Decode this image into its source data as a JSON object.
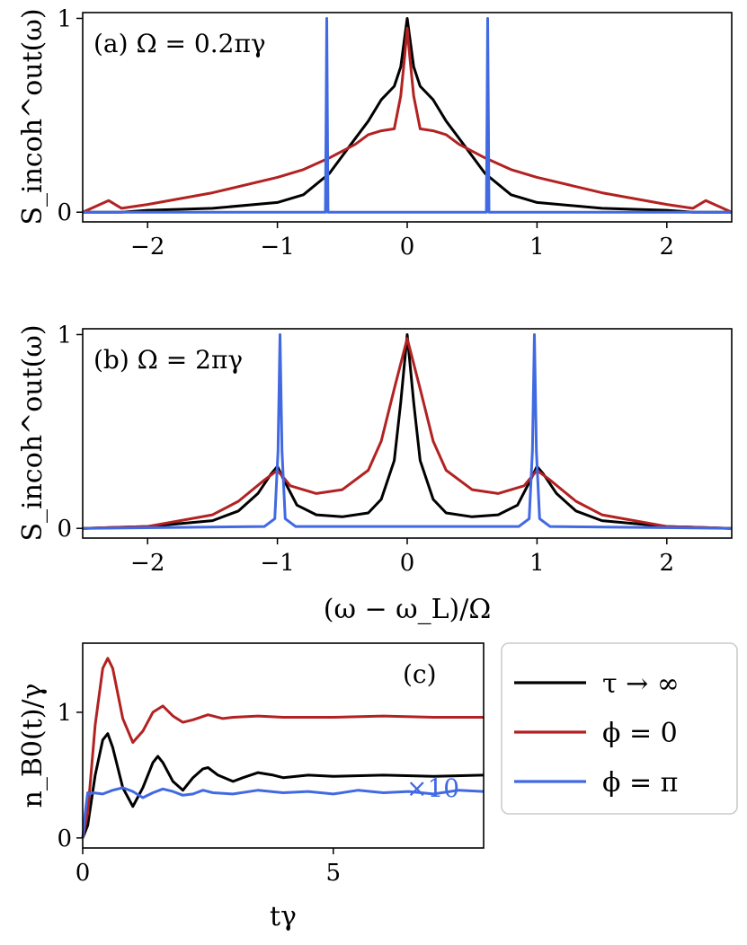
{
  "colors": {
    "tau_inf": "#000000",
    "phi0": "#b22222",
    "phipi": "#4169e1"
  },
  "legend": {
    "entries": [
      {
        "key": "tau_inf",
        "label": "τ → ∞"
      },
      {
        "key": "phi0",
        "label": "ϕ = 0"
      },
      {
        "key": "phipi",
        "label": "ϕ = π"
      }
    ]
  },
  "chart_data": [
    {
      "id": "a",
      "type": "line",
      "annotation": "(a) Ω = 0.2πγ",
      "ylabel": "S_incoh^out(ω)",
      "xlabel": "",
      "xlim": [
        -2.5,
        2.5
      ],
      "ylim": [
        -0.05,
        1.03
      ],
      "xticks": [
        -2,
        -1,
        0,
        1,
        2
      ],
      "xtick_labels": [
        "−2",
        "−1",
        "0",
        "1",
        "2"
      ],
      "yticks": [
        0,
        1
      ],
      "ytick_labels": [
        "0",
        "1"
      ],
      "series": [
        {
          "key": "tau_inf",
          "x": [
            -2.5,
            -2.2,
            -2.0,
            -1.5,
            -1.0,
            -0.8,
            -0.6,
            -0.4,
            -0.3,
            -0.2,
            -0.1,
            -0.05,
            0,
            0.05,
            0.1,
            0.2,
            0.3,
            0.4,
            0.6,
            0.8,
            1.0,
            1.5,
            2.0,
            2.2,
            2.5
          ],
          "y": [
            0.0,
            0.0,
            0.01,
            0.02,
            0.05,
            0.09,
            0.2,
            0.38,
            0.47,
            0.58,
            0.65,
            0.75,
            1.0,
            0.75,
            0.65,
            0.58,
            0.47,
            0.38,
            0.2,
            0.09,
            0.05,
            0.02,
            0.01,
            0.0,
            0.0
          ]
        },
        {
          "key": "phi0",
          "x": [
            -2.5,
            -2.3,
            -2.2,
            -2.0,
            -1.5,
            -1.0,
            -0.8,
            -0.6,
            -0.4,
            -0.3,
            -0.2,
            -0.1,
            -0.05,
            -0.02,
            0,
            0.02,
            0.05,
            0.1,
            0.2,
            0.3,
            0.4,
            0.6,
            0.8,
            1.0,
            1.5,
            2.0,
            2.2,
            2.3,
            2.5
          ],
          "y": [
            0.0,
            0.06,
            0.02,
            0.04,
            0.1,
            0.18,
            0.22,
            0.28,
            0.35,
            0.4,
            0.42,
            0.43,
            0.6,
            0.8,
            0.95,
            0.8,
            0.6,
            0.43,
            0.42,
            0.4,
            0.35,
            0.28,
            0.22,
            0.18,
            0.1,
            0.04,
            0.02,
            0.06,
            0.0
          ]
        },
        {
          "key": "phipi",
          "x": [
            -2.5,
            -0.63,
            -0.625,
            -0.62,
            -0.615,
            -0.61,
            0.61,
            0.615,
            0.62,
            0.625,
            0.63,
            2.5
          ],
          "y": [
            0.0,
            0.0,
            0.5,
            1.0,
            0.5,
            0.0,
            0.0,
            0.5,
            1.0,
            0.5,
            0.0,
            0.0
          ]
        }
      ]
    },
    {
      "id": "b",
      "type": "line",
      "annotation": "(b) Ω = 2πγ",
      "ylabel": "S_incoh^out(ω)",
      "xlabel": "(ω − ω_L)/Ω",
      "xlim": [
        -2.5,
        2.5
      ],
      "ylim": [
        -0.05,
        1.03
      ],
      "xticks": [
        -2,
        -1,
        0,
        1,
        2
      ],
      "xtick_labels": [
        "−2",
        "−1",
        "0",
        "1",
        "2"
      ],
      "yticks": [
        0,
        1
      ],
      "ytick_labels": [
        "0",
        "1"
      ],
      "series": [
        {
          "key": "tau_inf",
          "x": [
            -2.5,
            -2.0,
            -1.5,
            -1.3,
            -1.15,
            -1.05,
            -1.0,
            -0.95,
            -0.85,
            -0.7,
            -0.5,
            -0.3,
            -0.2,
            -0.1,
            -0.05,
            0,
            0.05,
            0.1,
            0.2,
            0.3,
            0.5,
            0.7,
            0.85,
            0.95,
            1.0,
            1.05,
            1.15,
            1.3,
            1.5,
            2.0,
            2.5
          ],
          "y": [
            0.0,
            0.01,
            0.04,
            0.09,
            0.18,
            0.28,
            0.32,
            0.25,
            0.12,
            0.07,
            0.06,
            0.08,
            0.15,
            0.35,
            0.65,
            1.0,
            0.65,
            0.35,
            0.15,
            0.08,
            0.06,
            0.07,
            0.12,
            0.25,
            0.32,
            0.28,
            0.18,
            0.09,
            0.04,
            0.01,
            0.0
          ]
        },
        {
          "key": "phi0",
          "x": [
            -2.5,
            -2.0,
            -1.5,
            -1.3,
            -1.1,
            -1.0,
            -0.9,
            -0.7,
            -0.5,
            -0.3,
            -0.2,
            -0.1,
            0,
            0.1,
            0.2,
            0.3,
            0.5,
            0.7,
            0.9,
            1.0,
            1.1,
            1.3,
            1.5,
            2.0,
            2.5
          ],
          "y": [
            0.0,
            0.01,
            0.07,
            0.14,
            0.25,
            0.3,
            0.22,
            0.18,
            0.2,
            0.3,
            0.45,
            0.72,
            0.98,
            0.72,
            0.45,
            0.3,
            0.2,
            0.18,
            0.22,
            0.3,
            0.25,
            0.14,
            0.07,
            0.01,
            0.0
          ]
        },
        {
          "key": "phipi",
          "x": [
            -2.5,
            -1.1,
            -1.02,
            -0.995,
            -0.98,
            -0.965,
            -0.94,
            -0.86,
            0.86,
            0.94,
            0.965,
            0.98,
            0.995,
            1.02,
            1.1,
            2.5
          ],
          "y": [
            0.0,
            0.01,
            0.05,
            0.4,
            1.0,
            0.4,
            0.05,
            0.01,
            0.01,
            0.05,
            0.4,
            1.0,
            0.4,
            0.05,
            0.01,
            0.0
          ]
        }
      ]
    },
    {
      "id": "c",
      "type": "line",
      "annotation": "(c)",
      "ylabel": "n_B0(t)/γ",
      "xlabel": "tγ",
      "xlim": [
        0,
        8
      ],
      "ylim": [
        -0.08,
        1.55
      ],
      "xticks": [
        0,
        5
      ],
      "xtick_labels": [
        "0",
        "5"
      ],
      "yticks": [
        0,
        1
      ],
      "ytick_labels": [
        "0",
        "1"
      ],
      "note": "×10",
      "series": [
        {
          "key": "tau_inf",
          "x": [
            0,
            0.1,
            0.25,
            0.4,
            0.5,
            0.6,
            0.8,
            1.0,
            1.2,
            1.4,
            1.5,
            1.6,
            1.8,
            2.0,
            2.2,
            2.4,
            2.5,
            2.7,
            3.0,
            3.2,
            3.5,
            3.8,
            4.0,
            4.5,
            5.0,
            6.0,
            7.0,
            8.0
          ],
          "y": [
            0,
            0.1,
            0.5,
            0.78,
            0.83,
            0.72,
            0.4,
            0.25,
            0.4,
            0.6,
            0.65,
            0.6,
            0.45,
            0.38,
            0.48,
            0.55,
            0.56,
            0.5,
            0.45,
            0.48,
            0.52,
            0.5,
            0.48,
            0.5,
            0.49,
            0.5,
            0.49,
            0.5
          ]
        },
        {
          "key": "phi0",
          "x": [
            0,
            0.1,
            0.25,
            0.4,
            0.5,
            0.6,
            0.8,
            1.0,
            1.2,
            1.4,
            1.6,
            1.8,
            2.0,
            2.2,
            2.5,
            2.8,
            3.0,
            3.5,
            4.0,
            5.0,
            6.0,
            7.0,
            8.0
          ],
          "y": [
            0,
            0.2,
            0.9,
            1.35,
            1.43,
            1.35,
            0.95,
            0.76,
            0.85,
            1.0,
            1.05,
            0.97,
            0.92,
            0.94,
            0.98,
            0.95,
            0.96,
            0.97,
            0.96,
            0.96,
            0.97,
            0.96,
            0.96
          ]
        },
        {
          "key": "phipi",
          "x": [
            0,
            0.05,
            0.1,
            0.15,
            0.2,
            0.4,
            0.6,
            0.8,
            1.0,
            1.2,
            1.4,
            1.6,
            1.8,
            2.0,
            2.2,
            2.4,
            2.6,
            3.0,
            3.5,
            4.0,
            4.5,
            5.0,
            5.5,
            6.0,
            6.5,
            7.0,
            7.5,
            8.0
          ],
          "y": [
            0,
            0.2,
            0.36,
            0.35,
            0.36,
            0.35,
            0.38,
            0.4,
            0.37,
            0.32,
            0.36,
            0.39,
            0.37,
            0.34,
            0.35,
            0.38,
            0.36,
            0.35,
            0.38,
            0.36,
            0.37,
            0.35,
            0.38,
            0.36,
            0.37,
            0.35,
            0.38,
            0.37
          ]
        }
      ]
    }
  ]
}
